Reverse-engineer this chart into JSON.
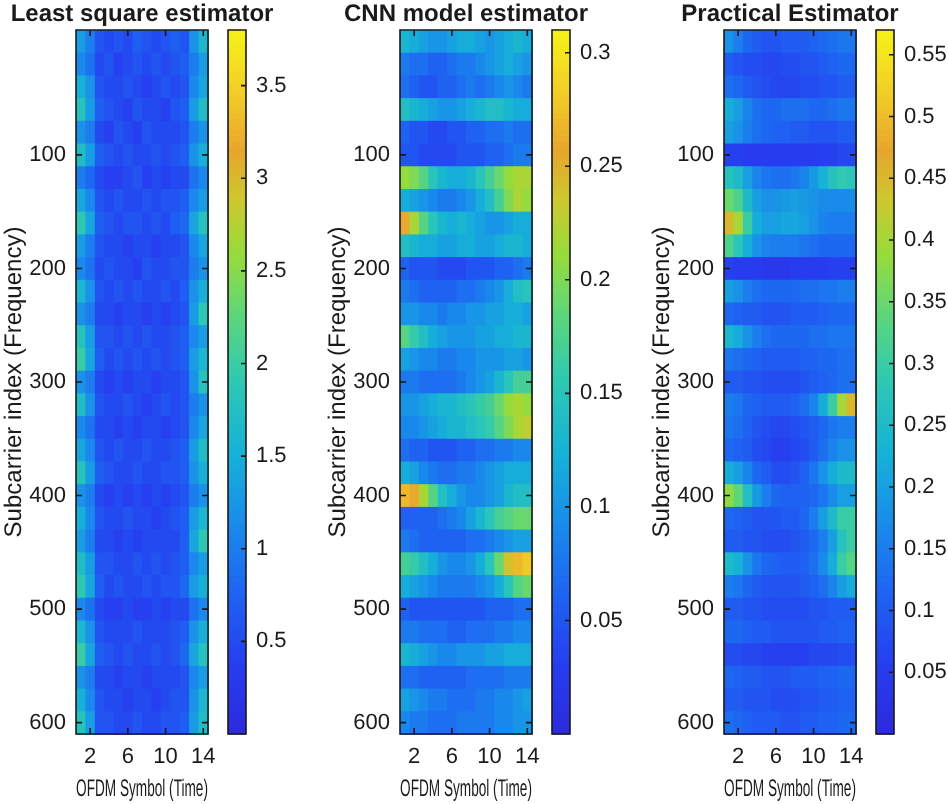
{
  "chart_data": [
    {
      "type": "heatmap",
      "title": "Least square estimator",
      "xlabel": "OFDM Symbol (Time)",
      "ylabel": "Subcarrier index (Frequency)",
      "categories": [
        null,
        "2",
        null,
        null,
        null,
        "6",
        null,
        null,
        null,
        "10",
        null,
        null,
        null,
        "14"
      ],
      "y_categories": [
        null,
        null,
        null,
        null,
        null,
        "100",
        null,
        null,
        null,
        null,
        "200",
        null,
        null,
        null,
        null,
        "300",
        null,
        null,
        null,
        null,
        "400",
        null,
        null,
        null,
        null,
        "500",
        null,
        null,
        null,
        null,
        "600"
      ],
      "clim": [
        0,
        3.8
      ],
      "cticks": [
        0.5,
        1,
        1.5,
        2,
        2.5,
        3,
        3.5
      ],
      "cells": [
        [
          1.3,
          1.0,
          0.6,
          0.5,
          0.6,
          0.5,
          0.7,
          0.6,
          0.5,
          0.6,
          0.7,
          0.6,
          1.2,
          1.6
        ],
        [
          1.1,
          0.9,
          0.5,
          0.6,
          0.4,
          0.5,
          0.6,
          0.5,
          0.6,
          0.5,
          0.6,
          0.7,
          1.0,
          1.3
        ],
        [
          1.5,
          1.2,
          0.6,
          0.5,
          0.5,
          0.6,
          0.5,
          0.4,
          0.5,
          0.6,
          0.5,
          0.6,
          1.1,
          1.4
        ],
        [
          1.8,
          1.3,
          0.7,
          0.6,
          0.5,
          0.4,
          0.6,
          0.5,
          0.5,
          0.4,
          0.6,
          0.7,
          1.3,
          1.7
        ],
        [
          1.2,
          1.0,
          0.5,
          0.4,
          0.6,
          0.5,
          0.4,
          0.6,
          0.5,
          0.5,
          0.5,
          0.6,
          1.0,
          1.2
        ],
        [
          1.7,
          1.3,
          0.7,
          0.6,
          0.5,
          0.6,
          0.5,
          0.5,
          0.6,
          0.5,
          0.6,
          0.7,
          1.2,
          1.5
        ],
        [
          1.0,
          0.8,
          0.5,
          0.4,
          0.4,
          0.5,
          0.6,
          0.4,
          0.5,
          0.4,
          0.5,
          0.5,
          0.9,
          1.1
        ],
        [
          1.4,
          1.1,
          0.6,
          0.5,
          0.6,
          0.5,
          0.5,
          0.6,
          0.5,
          0.6,
          0.6,
          0.7,
          1.1,
          1.3
        ],
        [
          1.9,
          1.4,
          0.7,
          0.6,
          0.5,
          0.6,
          0.6,
          0.5,
          0.6,
          0.5,
          0.7,
          0.8,
          1.4,
          1.8
        ],
        [
          1.3,
          1.0,
          0.6,
          0.5,
          0.5,
          0.4,
          0.5,
          0.5,
          0.4,
          0.5,
          0.5,
          0.6,
          1.1,
          1.4
        ],
        [
          1.1,
          0.9,
          0.5,
          0.6,
          0.5,
          0.5,
          0.4,
          0.6,
          0.5,
          0.5,
          0.6,
          0.6,
          1.0,
          1.2
        ],
        [
          1.6,
          1.2,
          0.6,
          0.5,
          0.6,
          0.5,
          0.6,
          0.5,
          0.5,
          0.6,
          0.5,
          0.7,
          1.2,
          1.5
        ],
        [
          1.2,
          1.0,
          0.5,
          0.5,
          0.4,
          0.5,
          0.5,
          0.4,
          0.5,
          0.4,
          0.5,
          0.6,
          1.3,
          1.9
        ],
        [
          1.8,
          1.3,
          0.6,
          0.6,
          0.5,
          0.6,
          0.5,
          0.6,
          0.5,
          0.5,
          0.6,
          0.7,
          1.1,
          1.3
        ],
        [
          2.0,
          1.4,
          0.7,
          0.5,
          0.6,
          0.5,
          0.6,
          0.5,
          0.6,
          0.5,
          0.6,
          0.7,
          1.3,
          1.6
        ],
        [
          1.2,
          1.0,
          0.5,
          0.4,
          0.5,
          0.4,
          0.5,
          0.5,
          0.4,
          0.5,
          0.5,
          0.6,
          1.2,
          1.8
        ],
        [
          1.7,
          1.2,
          0.6,
          0.5,
          0.5,
          0.6,
          0.5,
          0.4,
          0.5,
          0.6,
          0.5,
          0.6,
          1.0,
          1.2
        ],
        [
          1.1,
          0.9,
          0.5,
          0.5,
          0.4,
          0.5,
          0.4,
          0.5,
          0.5,
          0.4,
          0.5,
          0.6,
          1.1,
          1.4
        ],
        [
          1.4,
          1.1,
          0.6,
          0.5,
          0.6,
          0.5,
          0.5,
          0.6,
          0.5,
          0.5,
          0.6,
          0.7,
          1.3,
          1.7
        ],
        [
          1.8,
          1.3,
          0.7,
          0.6,
          0.5,
          0.5,
          0.6,
          0.5,
          0.5,
          0.6,
          0.6,
          0.7,
          1.2,
          1.5
        ],
        [
          1.2,
          1.0,
          0.5,
          0.4,
          0.5,
          0.4,
          0.5,
          0.4,
          0.5,
          0.4,
          0.5,
          0.6,
          1.0,
          1.2
        ],
        [
          1.5,
          1.1,
          0.6,
          0.5,
          0.5,
          0.6,
          0.5,
          0.5,
          0.4,
          0.5,
          0.6,
          0.7,
          1.3,
          1.6
        ],
        [
          1.3,
          1.0,
          0.5,
          0.5,
          0.4,
          0.5,
          0.4,
          0.5,
          0.5,
          0.5,
          0.5,
          0.7,
          1.4,
          1.9
        ],
        [
          1.7,
          1.3,
          0.6,
          0.6,
          0.5,
          0.5,
          0.6,
          0.5,
          0.6,
          0.5,
          0.6,
          0.7,
          1.1,
          1.3
        ],
        [
          1.9,
          1.4,
          0.7,
          0.5,
          0.6,
          0.5,
          0.5,
          0.6,
          0.5,
          0.6,
          0.6,
          0.8,
          1.3,
          1.5
        ],
        [
          1.1,
          0.9,
          0.5,
          0.4,
          0.4,
          0.5,
          0.4,
          0.4,
          0.5,
          0.4,
          0.5,
          0.5,
          0.9,
          1.1
        ],
        [
          1.6,
          1.2,
          0.6,
          0.5,
          0.5,
          0.5,
          0.6,
          0.5,
          0.5,
          0.5,
          0.6,
          0.7,
          1.2,
          1.5
        ],
        [
          2.0,
          1.4,
          0.7,
          0.6,
          0.5,
          0.6,
          0.5,
          0.5,
          0.6,
          0.5,
          0.6,
          0.8,
          1.4,
          1.8
        ],
        [
          1.2,
          1.0,
          0.5,
          0.5,
          0.4,
          0.5,
          0.5,
          0.4,
          0.5,
          0.5,
          0.5,
          0.6,
          1.1,
          1.3
        ],
        [
          1.5,
          1.1,
          0.6,
          0.5,
          0.5,
          0.4,
          0.5,
          0.5,
          0.4,
          0.5,
          0.6,
          0.6,
          1.2,
          1.6
        ],
        [
          1.8,
          1.3,
          0.6,
          0.6,
          0.5,
          0.5,
          0.6,
          0.5,
          0.5,
          0.6,
          0.6,
          0.7,
          1.3,
          1.7
        ]
      ]
    },
    {
      "type": "heatmap",
      "title": "CNN model estimator",
      "xlabel": "OFDM Symbol (Time)",
      "ylabel": "Subcarrier index (Frequency)",
      "categories": [
        null,
        "2",
        null,
        null,
        null,
        "6",
        null,
        null,
        null,
        "10",
        null,
        null,
        null,
        "14"
      ],
      "y_categories": [
        null,
        null,
        null,
        null,
        null,
        "100",
        null,
        null,
        null,
        null,
        "200",
        null,
        null,
        null,
        null,
        "300",
        null,
        null,
        null,
        null,
        "400",
        null,
        null,
        null,
        null,
        "500",
        null,
        null,
        null,
        null,
        "600"
      ],
      "clim": [
        0,
        0.31
      ],
      "cticks": [
        0.05,
        0.1,
        0.15,
        0.2,
        0.25,
        0.3
      ],
      "cells": [
        [
          0.13,
          0.12,
          0.11,
          0.1,
          0.1,
          0.11,
          0.12,
          0.12,
          0.11,
          0.1,
          0.11,
          0.12,
          0.13,
          0.12
        ],
        [
          0.08,
          0.07,
          0.07,
          0.06,
          0.06,
          0.07,
          0.08,
          0.08,
          0.09,
          0.1,
          0.11,
          0.12,
          0.11,
          0.1
        ],
        [
          0.07,
          0.06,
          0.05,
          0.05,
          0.06,
          0.06,
          0.07,
          0.08,
          0.07,
          0.08,
          0.09,
          0.1,
          0.09,
          0.08
        ],
        [
          0.14,
          0.13,
          0.12,
          0.11,
          0.1,
          0.1,
          0.11,
          0.12,
          0.13,
          0.14,
          0.14,
          0.13,
          0.12,
          0.12
        ],
        [
          0.06,
          0.05,
          0.05,
          0.04,
          0.04,
          0.05,
          0.05,
          0.06,
          0.06,
          0.07,
          0.07,
          0.08,
          0.07,
          0.07
        ],
        [
          0.05,
          0.05,
          0.04,
          0.04,
          0.04,
          0.04,
          0.05,
          0.05,
          0.05,
          0.06,
          0.06,
          0.07,
          0.08,
          0.08
        ],
        [
          0.21,
          0.2,
          0.18,
          0.15,
          0.13,
          0.12,
          0.12,
          0.13,
          0.15,
          0.17,
          0.19,
          0.21,
          0.22,
          0.22
        ],
        [
          0.12,
          0.11,
          0.1,
          0.09,
          0.08,
          0.08,
          0.09,
          0.1,
          0.12,
          0.14,
          0.17,
          0.2,
          0.22,
          0.21
        ],
        [
          0.26,
          0.22,
          0.18,
          0.15,
          0.13,
          0.12,
          0.13,
          0.12,
          0.11,
          0.1,
          0.1,
          0.11,
          0.12,
          0.12
        ],
        [
          0.14,
          0.13,
          0.12,
          0.12,
          0.11,
          0.11,
          0.12,
          0.12,
          0.11,
          0.11,
          0.12,
          0.13,
          0.13,
          0.12
        ],
        [
          0.06,
          0.05,
          0.05,
          0.05,
          0.04,
          0.04,
          0.04,
          0.05,
          0.05,
          0.05,
          0.06,
          0.06,
          0.07,
          0.08
        ],
        [
          0.08,
          0.07,
          0.06,
          0.06,
          0.06,
          0.06,
          0.07,
          0.07,
          0.08,
          0.09,
          0.1,
          0.12,
          0.14,
          0.15
        ],
        [
          0.1,
          0.1,
          0.09,
          0.09,
          0.08,
          0.09,
          0.09,
          0.1,
          0.1,
          0.11,
          0.11,
          0.12,
          0.12,
          0.11
        ],
        [
          0.18,
          0.16,
          0.14,
          0.12,
          0.11,
          0.1,
          0.1,
          0.1,
          0.11,
          0.11,
          0.12,
          0.12,
          0.13,
          0.13
        ],
        [
          0.11,
          0.1,
          0.09,
          0.09,
          0.08,
          0.08,
          0.09,
          0.09,
          0.1,
          0.1,
          0.1,
          0.11,
          0.11,
          0.1
        ],
        [
          0.08,
          0.08,
          0.07,
          0.07,
          0.07,
          0.07,
          0.08,
          0.09,
          0.1,
          0.11,
          0.13,
          0.15,
          0.17,
          0.17
        ],
        [
          0.1,
          0.1,
          0.11,
          0.12,
          0.13,
          0.13,
          0.14,
          0.15,
          0.16,
          0.17,
          0.19,
          0.21,
          0.22,
          0.21
        ],
        [
          0.09,
          0.09,
          0.1,
          0.11,
          0.12,
          0.13,
          0.13,
          0.14,
          0.15,
          0.16,
          0.18,
          0.2,
          0.22,
          0.23
        ],
        [
          0.07,
          0.06,
          0.06,
          0.05,
          0.05,
          0.05,
          0.06,
          0.06,
          0.07,
          0.07,
          0.08,
          0.08,
          0.09,
          0.09
        ],
        [
          0.12,
          0.11,
          0.09,
          0.08,
          0.07,
          0.07,
          0.08,
          0.08,
          0.09,
          0.1,
          0.11,
          0.12,
          0.12,
          0.12
        ],
        [
          0.27,
          0.26,
          0.22,
          0.18,
          0.14,
          0.12,
          0.1,
          0.09,
          0.09,
          0.1,
          0.11,
          0.13,
          0.14,
          0.14
        ],
        [
          0.06,
          0.06,
          0.06,
          0.06,
          0.07,
          0.08,
          0.09,
          0.11,
          0.13,
          0.15,
          0.17,
          0.18,
          0.19,
          0.19
        ],
        [
          0.08,
          0.07,
          0.06,
          0.06,
          0.06,
          0.06,
          0.06,
          0.07,
          0.07,
          0.08,
          0.09,
          0.1,
          0.11,
          0.11
        ],
        [
          0.17,
          0.16,
          0.14,
          0.12,
          0.1,
          0.09,
          0.09,
          0.1,
          0.12,
          0.15,
          0.19,
          0.24,
          0.27,
          0.28
        ],
        [
          0.12,
          0.11,
          0.1,
          0.09,
          0.08,
          0.08,
          0.08,
          0.08,
          0.09,
          0.1,
          0.12,
          0.15,
          0.18,
          0.19
        ],
        [
          0.06,
          0.05,
          0.05,
          0.05,
          0.05,
          0.05,
          0.05,
          0.05,
          0.05,
          0.06,
          0.06,
          0.06,
          0.07,
          0.07
        ],
        [
          0.08,
          0.08,
          0.07,
          0.07,
          0.07,
          0.06,
          0.06,
          0.07,
          0.07,
          0.07,
          0.08,
          0.08,
          0.09,
          0.09
        ],
        [
          0.13,
          0.12,
          0.11,
          0.1,
          0.09,
          0.09,
          0.1,
          0.1,
          0.1,
          0.11,
          0.11,
          0.12,
          0.12,
          0.12
        ],
        [
          0.07,
          0.07,
          0.06,
          0.06,
          0.06,
          0.06,
          0.06,
          0.07,
          0.07,
          0.07,
          0.07,
          0.08,
          0.08,
          0.08
        ],
        [
          0.11,
          0.1,
          0.09,
          0.08,
          0.08,
          0.07,
          0.07,
          0.07,
          0.08,
          0.08,
          0.09,
          0.09,
          0.1,
          0.11
        ],
        [
          0.09,
          0.08,
          0.08,
          0.07,
          0.07,
          0.07,
          0.08,
          0.08,
          0.08,
          0.08,
          0.09,
          0.09,
          0.1,
          0.1
        ]
      ]
    },
    {
      "type": "heatmap",
      "title": "Practical Estimator",
      "xlabel": "OFDM Symbol (Time)",
      "ylabel": "Subcarrier index (Frequency)",
      "categories": [
        null,
        "2",
        null,
        null,
        null,
        "6",
        null,
        null,
        null,
        "10",
        null,
        null,
        null,
        "14"
      ],
      "y_categories": [
        null,
        null,
        null,
        null,
        null,
        "100",
        null,
        null,
        null,
        null,
        "200",
        null,
        null,
        null,
        null,
        "300",
        null,
        null,
        null,
        null,
        "400",
        null,
        null,
        null,
        null,
        "500",
        null,
        null,
        null,
        null,
        "600"
      ],
      "clim": [
        0,
        0.57
      ],
      "cticks": [
        0.05,
        0.1,
        0.15,
        0.2,
        0.25,
        0.3,
        0.35,
        0.4,
        0.45,
        0.5,
        0.55
      ],
      "cells": [
        [
          0.18,
          0.15,
          0.12,
          0.1,
          0.09,
          0.09,
          0.1,
          0.1,
          0.1,
          0.11,
          0.12,
          0.13,
          0.14,
          0.14
        ],
        [
          0.1,
          0.09,
          0.08,
          0.08,
          0.07,
          0.07,
          0.08,
          0.08,
          0.09,
          0.09,
          0.1,
          0.11,
          0.12,
          0.12
        ],
        [
          0.13,
          0.12,
          0.1,
          0.09,
          0.08,
          0.07,
          0.07,
          0.07,
          0.08,
          0.08,
          0.09,
          0.09,
          0.1,
          0.1
        ],
        [
          0.22,
          0.2,
          0.16,
          0.13,
          0.12,
          0.12,
          0.13,
          0.13,
          0.13,
          0.12,
          0.12,
          0.13,
          0.14,
          0.14
        ],
        [
          0.2,
          0.18,
          0.15,
          0.13,
          0.12,
          0.11,
          0.11,
          0.1,
          0.1,
          0.09,
          0.09,
          0.09,
          0.1,
          0.1
        ],
        [
          0.06,
          0.06,
          0.05,
          0.05,
          0.05,
          0.05,
          0.05,
          0.05,
          0.05,
          0.05,
          0.06,
          0.06,
          0.07,
          0.07
        ],
        [
          0.27,
          0.25,
          0.2,
          0.16,
          0.14,
          0.13,
          0.13,
          0.14,
          0.16,
          0.19,
          0.23,
          0.27,
          0.29,
          0.28
        ],
        [
          0.35,
          0.32,
          0.25,
          0.2,
          0.18,
          0.18,
          0.19,
          0.2,
          0.19,
          0.18,
          0.17,
          0.17,
          0.17,
          0.17
        ],
        [
          0.45,
          0.4,
          0.3,
          0.22,
          0.2,
          0.2,
          0.21,
          0.21,
          0.2,
          0.18,
          0.16,
          0.15,
          0.15,
          0.15
        ],
        [
          0.32,
          0.28,
          0.22,
          0.18,
          0.16,
          0.15,
          0.15,
          0.15,
          0.14,
          0.13,
          0.12,
          0.12,
          0.12,
          0.12
        ],
        [
          0.06,
          0.05,
          0.05,
          0.05,
          0.04,
          0.04,
          0.04,
          0.05,
          0.05,
          0.05,
          0.05,
          0.06,
          0.06,
          0.06
        ],
        [
          0.2,
          0.18,
          0.15,
          0.13,
          0.12,
          0.12,
          0.12,
          0.12,
          0.13,
          0.13,
          0.14,
          0.14,
          0.15,
          0.15
        ],
        [
          0.12,
          0.11,
          0.1,
          0.1,
          0.09,
          0.09,
          0.09,
          0.1,
          0.1,
          0.1,
          0.11,
          0.12,
          0.12,
          0.12
        ],
        [
          0.24,
          0.22,
          0.18,
          0.15,
          0.13,
          0.12,
          0.12,
          0.12,
          0.12,
          0.13,
          0.13,
          0.14,
          0.14,
          0.14
        ],
        [
          0.14,
          0.13,
          0.12,
          0.11,
          0.1,
          0.1,
          0.1,
          0.1,
          0.11,
          0.11,
          0.12,
          0.12,
          0.13,
          0.13
        ],
        [
          0.1,
          0.1,
          0.09,
          0.09,
          0.08,
          0.08,
          0.08,
          0.08,
          0.09,
          0.1,
          0.11,
          0.12,
          0.13,
          0.13
        ],
        [
          0.15,
          0.14,
          0.12,
          0.11,
          0.1,
          0.1,
          0.1,
          0.11,
          0.13,
          0.16,
          0.22,
          0.3,
          0.4,
          0.45
        ],
        [
          0.14,
          0.13,
          0.11,
          0.09,
          0.08,
          0.07,
          0.07,
          0.08,
          0.09,
          0.1,
          0.12,
          0.14,
          0.15,
          0.15
        ],
        [
          0.12,
          0.11,
          0.1,
          0.08,
          0.07,
          0.06,
          0.06,
          0.07,
          0.08,
          0.1,
          0.13,
          0.16,
          0.18,
          0.18
        ],
        [
          0.22,
          0.2,
          0.16,
          0.12,
          0.1,
          0.08,
          0.08,
          0.09,
          0.11,
          0.14,
          0.18,
          0.22,
          0.25,
          0.25
        ],
        [
          0.38,
          0.34,
          0.26,
          0.19,
          0.15,
          0.12,
          0.11,
          0.11,
          0.11,
          0.12,
          0.14,
          0.17,
          0.2,
          0.2
        ],
        [
          0.12,
          0.11,
          0.1,
          0.09,
          0.09,
          0.09,
          0.1,
          0.1,
          0.12,
          0.15,
          0.2,
          0.25,
          0.3,
          0.3
        ],
        [
          0.1,
          0.1,
          0.09,
          0.09,
          0.08,
          0.08,
          0.08,
          0.09,
          0.1,
          0.12,
          0.15,
          0.2,
          0.27,
          0.3
        ],
        [
          0.25,
          0.23,
          0.18,
          0.14,
          0.12,
          0.11,
          0.1,
          0.1,
          0.11,
          0.13,
          0.17,
          0.22,
          0.3,
          0.33
        ],
        [
          0.15,
          0.14,
          0.12,
          0.1,
          0.09,
          0.09,
          0.09,
          0.09,
          0.1,
          0.11,
          0.13,
          0.16,
          0.2,
          0.22
        ],
        [
          0.1,
          0.1,
          0.09,
          0.09,
          0.08,
          0.08,
          0.08,
          0.08,
          0.08,
          0.09,
          0.09,
          0.1,
          0.1,
          0.1
        ],
        [
          0.12,
          0.12,
          0.11,
          0.1,
          0.1,
          0.09,
          0.09,
          0.09,
          0.09,
          0.09,
          0.1,
          0.1,
          0.11,
          0.11
        ],
        [
          0.08,
          0.08,
          0.07,
          0.07,
          0.06,
          0.06,
          0.06,
          0.06,
          0.06,
          0.07,
          0.07,
          0.07,
          0.08,
          0.08
        ],
        [
          0.12,
          0.11,
          0.1,
          0.1,
          0.09,
          0.09,
          0.09,
          0.1,
          0.1,
          0.1,
          0.11,
          0.11,
          0.12,
          0.12
        ],
        [
          0.1,
          0.1,
          0.09,
          0.09,
          0.09,
          0.08,
          0.08,
          0.08,
          0.09,
          0.09,
          0.1,
          0.1,
          0.11,
          0.11
        ],
        [
          0.13,
          0.12,
          0.11,
          0.1,
          0.1,
          0.1,
          0.09,
          0.09,
          0.1,
          0.1,
          0.11,
          0.11,
          0.12,
          0.12
        ]
      ]
    }
  ]
}
